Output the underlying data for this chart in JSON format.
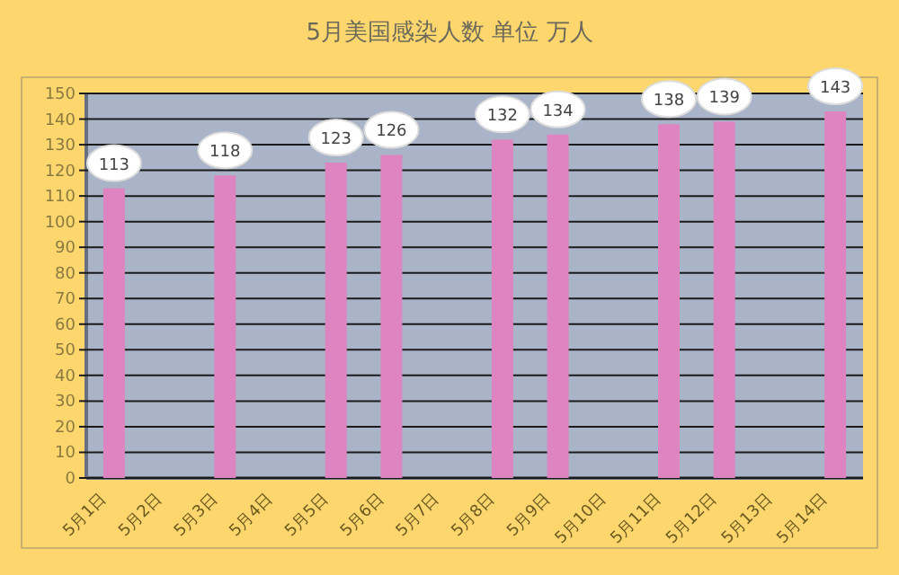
{
  "chart_data": {
    "type": "bar",
    "title": "5月美国感染人数 单位 万人",
    "categories": [
      "5月1日",
      "5月2日",
      "5月3日",
      "5月4日",
      "5月5日",
      "5月6日",
      "5月7日",
      "5月8日",
      "5月9日",
      "5月10日",
      "5月11日",
      "5月12日",
      "5月13日",
      "5月14日"
    ],
    "values": [
      113,
      null,
      118,
      null,
      123,
      126,
      null,
      132,
      134,
      null,
      138,
      139,
      null,
      143
    ],
    "color": "#de84c0",
    "ylim": [
      0,
      150
    ],
    "yticks": [
      0,
      10,
      20,
      30,
      40,
      50,
      60,
      70,
      80,
      90,
      100,
      110,
      120,
      130,
      140,
      150
    ],
    "grid": "y",
    "data_labels": true
  }
}
